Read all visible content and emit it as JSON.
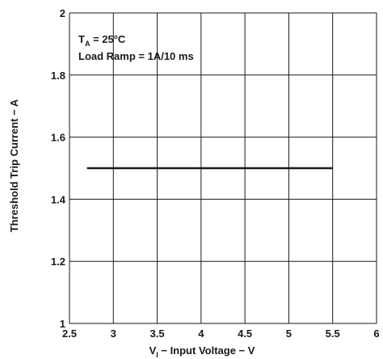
{
  "chart_data": {
    "type": "line",
    "xlabel": {
      "main": "V",
      "sub": "I",
      "rest": " − Input Voltage − V"
    },
    "ylabel": "Threshold Trip Current − A",
    "xlim": [
      2.5,
      6
    ],
    "ylim": [
      1,
      2
    ],
    "x_ticks": [
      "2.5",
      "3",
      "3.5",
      "4",
      "4.5",
      "5",
      "5.5",
      "6"
    ],
    "y_ticks": [
      "1",
      "1.2",
      "1.4",
      "1.6",
      "1.8",
      "2"
    ],
    "grid": true,
    "annotations": {
      "line1": {
        "main": "T",
        "sub": "A",
        "rest": " = 25°C"
      },
      "line2": "Load Ramp = 1A/10 ms"
    },
    "series": [
      {
        "x": [
          2.7,
          5.5
        ],
        "y": [
          1.5,
          1.5
        ],
        "color": "#1a1a1a"
      }
    ]
  }
}
